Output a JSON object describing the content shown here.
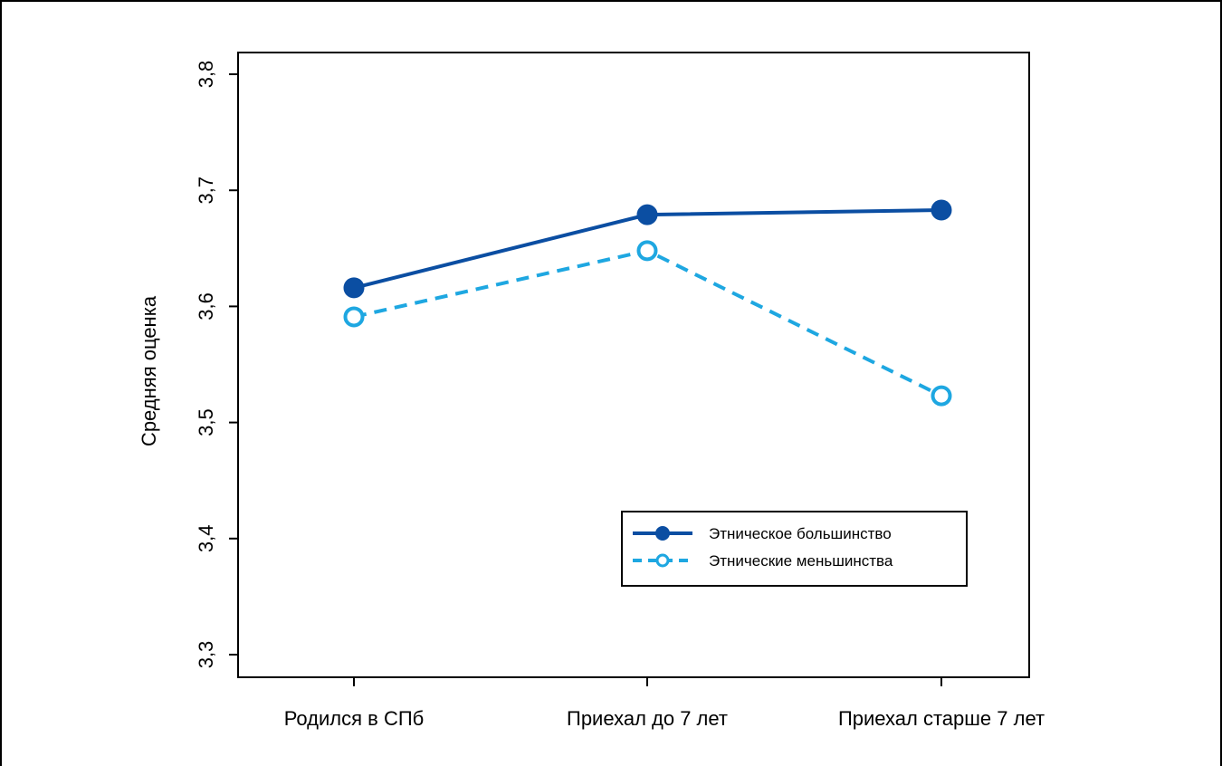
{
  "chart_data": {
    "type": "line",
    "ylabel": "Средняя оценка",
    "xlabel": "",
    "categories": [
      "Родился в СПб",
      "Приехал до 7 лет",
      "Приехал старше 7 лет"
    ],
    "ylim": [
      3.3,
      3.8
    ],
    "yticks": [
      3.3,
      3.4,
      3.5,
      3.6,
      3.7,
      3.8
    ],
    "ytick_labels": [
      "3,3",
      "3,4",
      "3,5",
      "3,6",
      "3,7",
      "3,8"
    ],
    "grid": false,
    "legend_position": "bottom-right",
    "series": [
      {
        "name": "Этническое большинство",
        "values": [
          3.616,
          3.679,
          3.683
        ],
        "color": "#0b4ea2",
        "marker": "filled-circle",
        "line_style": "solid"
      },
      {
        "name": "Этнические меньшинства",
        "values": [
          3.591,
          3.648,
          3.523
        ],
        "color": "#1ea7e1",
        "marker": "open-circle",
        "line_style": "dashed"
      }
    ]
  }
}
